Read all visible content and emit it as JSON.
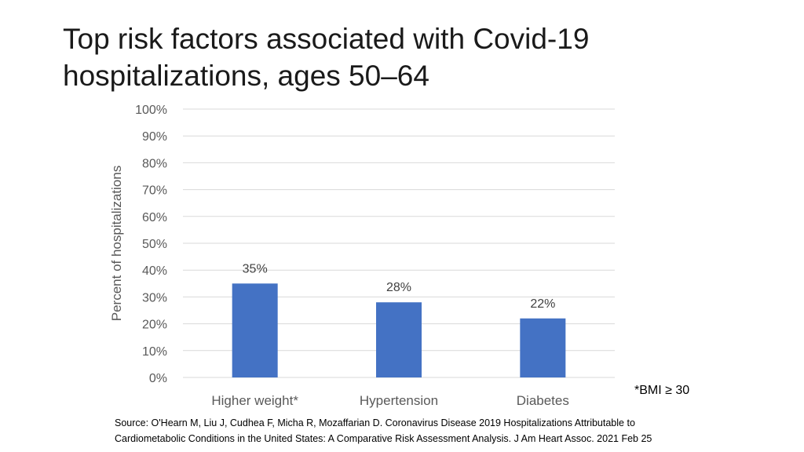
{
  "slide": {
    "title_line1": "Top risk factors associated with Covid-19",
    "title_line2": "hospitalizations, ages 50–64",
    "footnote": "*BMI ≥ 30",
    "source_line1": "Source: O'Hearn M, Liu J, Cudhea F, Micha R, Mozaffarian D. Coronavirus Disease 2019 Hospitalizations Attributable to",
    "source_line2": "Cardiometabolic Conditions in the United States: A Comparative Risk Assessment Analysis. J Am Heart Assoc. 2021 Feb 25"
  },
  "colors": {
    "bar": "#4472c4",
    "grid": "#d9d9d9",
    "tick_text": "#595959",
    "label_text": "#404040"
  },
  "chart_data": {
    "type": "bar",
    "title": "",
    "categories": [
      "Higher weight*",
      "Hypertension",
      "Diabetes"
    ],
    "values": [
      35,
      28,
      22
    ],
    "data_labels": [
      "35%",
      "28%",
      "22%"
    ],
    "xlabel": "",
    "ylabel": "Percent of hospitalizations",
    "ylim": [
      0,
      100
    ],
    "yticks": [
      0,
      10,
      20,
      30,
      40,
      50,
      60,
      70,
      80,
      90,
      100
    ],
    "ytick_labels": [
      "0%",
      "10%",
      "20%",
      "30%",
      "40%",
      "50%",
      "60%",
      "70%",
      "80%",
      "90%",
      "100%"
    ],
    "grid": true,
    "legend": "none"
  }
}
